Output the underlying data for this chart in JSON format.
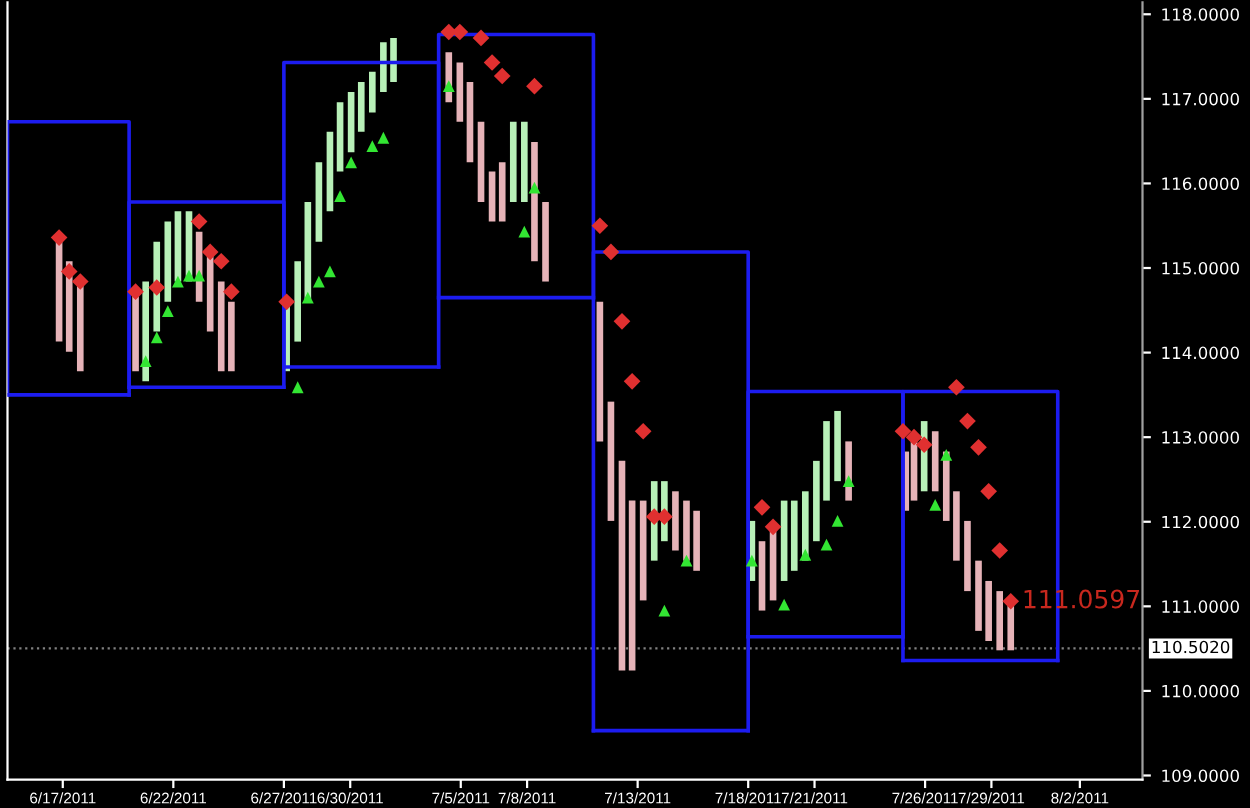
{
  "chart_data": {
    "type": "bar",
    "xlim": [
      "2011-06-14T12:00",
      "2011-08-04T20:00"
    ],
    "ylim": [
      108.95,
      118.14
    ],
    "xticks": [
      {
        "value": "2011-06-17",
        "label": "6/17/2011"
      },
      {
        "value": "2011-06-22",
        "label": "6/22/2011"
      },
      {
        "value": "2011-06-27",
        "label": "6/27/2011"
      },
      {
        "value": "2011-06-30",
        "label": "6/30/2011"
      },
      {
        "value": "2011-07-05",
        "label": "7/5/2011"
      },
      {
        "value": "2011-07-08",
        "label": "7/8/2011"
      },
      {
        "value": "2011-07-13",
        "label": "7/13/2011"
      },
      {
        "value": "2011-07-18",
        "label": "7/18/2011"
      },
      {
        "value": "2011-07-21",
        "label": "7/21/2011"
      },
      {
        "value": "2011-07-26",
        "label": "7/26/2011"
      },
      {
        "value": "2011-07-29",
        "label": "7/29/2011"
      },
      {
        "value": "2011-08-02",
        "label": "8/2/2011"
      }
    ],
    "yticks": [
      {
        "value": 109,
        "label": "109.0000"
      },
      {
        "value": 110,
        "label": "110.0000"
      },
      {
        "value": 111,
        "label": "111.0000"
      },
      {
        "value": 112,
        "label": "112.0000"
      },
      {
        "value": 113,
        "label": "113.0000"
      },
      {
        "value": 114,
        "label": "114.0000"
      },
      {
        "value": 115,
        "label": "115.0000"
      },
      {
        "value": 116,
        "label": "116.0000"
      },
      {
        "value": 117,
        "label": "117.0000"
      },
      {
        "value": 118,
        "label": "118.0000"
      }
    ],
    "grid": false,
    "legend": false,
    "annotations": [
      {
        "text": "111.0597",
        "x": "2011-07-29T21:00",
        "y": 111.0597
      }
    ],
    "ref_lines": [
      {
        "axis": "y",
        "value": 110.502,
        "label": "110.5020",
        "color": "#808080",
        "line_style": "dotted"
      }
    ],
    "series": [
      {
        "x": [
          "2011-06-16T20:00",
          "2011-06-17T07:00",
          "2011-06-17T19:00",
          "2011-06-20T07:00",
          "2011-06-20T18:00",
          "2011-06-21T06:00",
          "2011-06-21T18:00",
          "2011-06-22T05:00",
          "2011-06-22T17:00",
          "2011-06-23T04:00",
          "2011-06-23T16:00",
          "2011-06-24T04:00",
          "2011-06-24T15:00",
          "2011-06-27T03:00",
          "2011-06-27T15:00",
          "2011-06-28T02:00",
          "2011-06-28T14:00",
          "2011-06-29T02:00",
          "2011-06-29T13:00",
          "2011-06-30T01:00",
          "2011-06-30T12:00",
          "2011-07-01T00:00",
          "2011-07-01T12:00",
          "2011-07-01T23:00",
          "2011-07-04T11:00",
          "2011-07-04T23:00",
          "2011-07-05T10:00",
          "2011-07-05T22:00",
          "2011-07-06T10:00",
          "2011-07-06T21:00",
          "2011-07-07T09:00",
          "2011-07-07T21:00",
          "2011-07-08T08:00",
          "2011-07-08T20:00",
          "2011-07-11T07:00",
          "2011-07-11T19:00",
          "2011-07-12T07:00",
          "2011-07-12T18:00",
          "2011-07-13T06:00",
          "2011-07-13T18:00",
          "2011-07-14T05:00",
          "2011-07-14T17:00",
          "2011-07-15T05:00",
          "2011-07-15T16:00",
          "2011-07-18T04:00",
          "2011-07-18T15:00",
          "2011-07-19T03:00",
          "2011-07-19T15:00",
          "2011-07-20T02:00",
          "2011-07-20T14:00",
          "2011-07-21T02:00",
          "2011-07-21T13:00",
          "2011-07-22T01:00",
          "2011-07-22T13:00",
          "2011-07-25T03:00",
          "2011-07-25T12:00",
          "2011-07-25T23:00",
          "2011-07-26T11:00",
          "2011-07-26T23:00",
          "2011-07-27T10:00",
          "2011-07-27T22:00",
          "2011-07-28T10:00",
          "2011-07-28T21:00",
          "2011-07-29T09:00",
          "2011-07-29T21:00"
        ],
        "base": [
          114.13,
          114.01,
          113.78,
          113.78,
          113.66,
          114.25,
          114.6,
          114.84,
          114.84,
          114.6,
          114.25,
          113.78,
          113.78,
          113.78,
          114.13,
          114.6,
          115.31,
          115.67,
          116.14,
          116.37,
          116.61,
          116.84,
          117.08,
          117.2,
          116.96,
          116.73,
          116.25,
          115.78,
          115.55,
          115.55,
          115.78,
          115.78,
          115.08,
          114.84,
          112.95,
          112.01,
          110.24,
          110.24,
          111.07,
          111.54,
          111.77,
          111.66,
          111.54,
          111.42,
          111.3,
          110.95,
          111.07,
          111.3,
          111.42,
          111.54,
          111.77,
          112.25,
          112.48,
          112.25,
          112.13,
          112.25,
          112.36,
          112.36,
          112.01,
          111.54,
          111.18,
          110.71,
          110.59,
          110.48,
          110.48
        ],
        "values": [
          1.18,
          1.07,
          1.06,
          0.94,
          1.18,
          1.06,
          0.95,
          0.83,
          0.83,
          0.83,
          0.94,
          1.06,
          0.82,
          0.82,
          0.95,
          1.18,
          0.94,
          0.94,
          0.82,
          0.71,
          0.59,
          0.48,
          0.59,
          0.52,
          0.59,
          0.7,
          0.95,
          0.95,
          0.59,
          0.7,
          0.95,
          0.95,
          1.41,
          0.94,
          1.65,
          1.41,
          2.48,
          2.01,
          1.18,
          0.94,
          0.71,
          0.7,
          0.71,
          0.71,
          0.71,
          0.82,
          0.82,
          0.95,
          0.83,
          0.82,
          0.95,
          0.94,
          0.83,
          0.7,
          0.7,
          0.7,
          0.83,
          0.71,
          0.82,
          0.82,
          0.83,
          0.83,
          0.71,
          0.7,
          0.59
        ],
        "colors": [
          "#e6b3b8",
          "#e6b3b8",
          "#e6b3b8",
          "#e6b3b8",
          "#b8f0b8",
          "#b8f0b8",
          "#b8f0b8",
          "#b8f0b8",
          "#b8f0b8",
          "#e6b3b8",
          "#e6b3b8",
          "#e6b3b8",
          "#e6b3b8",
          "#b8f0b8",
          "#b8f0b8",
          "#b8f0b8",
          "#b8f0b8",
          "#b8f0b8",
          "#b8f0b8",
          "#b8f0b8",
          "#b8f0b8",
          "#b8f0b8",
          "#b8f0b8",
          "#b8f0b8",
          "#e6b3b8",
          "#e6b3b8",
          "#e6b3b8",
          "#e6b3b8",
          "#e6b3b8",
          "#e6b3b8",
          "#b8f0b8",
          "#b8f0b8",
          "#e6b3b8",
          "#e6b3b8",
          "#e6b3b8",
          "#e6b3b8",
          "#e6b3b8",
          "#e6b3b8",
          "#e6b3b8",
          "#b8f0b8",
          "#b8f0b8",
          "#e6b3b8",
          "#e6b3b8",
          "#e6b3b8",
          "#b8f0b8",
          "#e6b3b8",
          "#e6b3b8",
          "#b8f0b8",
          "#b8f0b8",
          "#b8f0b8",
          "#b8f0b8",
          "#b8f0b8",
          "#b8f0b8",
          "#e6b3b8",
          "#e6b3b8",
          "#e6b3b8",
          "#b8f0b8",
          "#e6b3b8",
          "#e6b3b8",
          "#e6b3b8",
          "#e6b3b8",
          "#e6b3b8",
          "#e6b3b8",
          "#e6b3b8",
          "#e6b3b8"
        ]
      },
      {
        "type": "line",
        "color": "#1c1cf0",
        "x": [
          "2011-06-14T12:00",
          "2011-06-14T12:00",
          "2011-06-20T00:00",
          "2011-06-20T00:00"
        ],
        "values": [
          113.5,
          116.73,
          116.73,
          113.5
        ]
      },
      {
        "type": "line",
        "color": "#1c1cf0",
        "x": [
          "2011-06-14T12:00",
          "2011-06-20T00:00"
        ],
        "values": [
          113.5,
          113.5
        ]
      },
      {
        "type": "line",
        "color": "#1c1cf0",
        "x": [
          "2011-06-20T00:00",
          "2011-06-20T00:00",
          "2011-06-27T00:00",
          "2011-06-27T00:00"
        ],
        "values": [
          113.59,
          115.78,
          115.78,
          113.59
        ]
      },
      {
        "type": "line",
        "color": "#1c1cf0",
        "x": [
          "2011-06-20T00:00",
          "2011-06-27T00:00"
        ],
        "values": [
          113.59,
          113.59
        ]
      },
      {
        "type": "line",
        "color": "#1c1cf0",
        "x": [
          "2011-06-27T00:00",
          "2011-06-27T00:00",
          "2011-07-04T00:00",
          "2011-07-04T00:00"
        ],
        "values": [
          113.83,
          117.43,
          117.43,
          113.83
        ]
      },
      {
        "type": "line",
        "color": "#1c1cf0",
        "x": [
          "2011-06-27T00:00",
          "2011-07-04T00:00"
        ],
        "values": [
          113.83,
          113.83
        ]
      },
      {
        "type": "line",
        "color": "#1c1cf0",
        "x": [
          "2011-07-04T00:00",
          "2011-07-04T00:00",
          "2011-07-11T00:00",
          "2011-07-11T00:00"
        ],
        "values": [
          114.65,
          117.76,
          117.76,
          114.65
        ]
      },
      {
        "type": "line",
        "color": "#1c1cf0",
        "x": [
          "2011-07-04T00:00",
          "2011-07-11T00:00"
        ],
        "values": [
          114.65,
          114.65
        ]
      },
      {
        "type": "line",
        "color": "#1c1cf0",
        "x": [
          "2011-07-11T00:00",
          "2011-07-11T00:00",
          "2011-07-18T00:00",
          "2011-07-18T00:00"
        ],
        "values": [
          109.53,
          115.19,
          115.19,
          109.53
        ]
      },
      {
        "type": "line",
        "color": "#1c1cf0",
        "x": [
          "2011-07-11T00:00",
          "2011-07-18T00:00"
        ],
        "values": [
          109.53,
          109.53
        ]
      },
      {
        "type": "line",
        "color": "#1c1cf0",
        "x": [
          "2011-07-18T00:00",
          "2011-07-18T00:00",
          "2011-07-25T00:00",
          "2011-07-25T00:00"
        ],
        "values": [
          110.64,
          113.54,
          113.54,
          110.64
        ]
      },
      {
        "type": "line",
        "color": "#1c1cf0",
        "x": [
          "2011-07-18T00:00",
          "2011-07-25T00:00"
        ],
        "values": [
          110.64,
          110.64
        ]
      },
      {
        "type": "line",
        "color": "#1c1cf0",
        "x": [
          "2011-07-25T00:00",
          "2011-07-25T00:00",
          "2011-08-01T00:00",
          "2011-08-01T00:00"
        ],
        "values": [
          110.36,
          113.54,
          113.54,
          110.36
        ]
      },
      {
        "type": "line",
        "color": "#1c1cf0",
        "x": [
          "2011-07-25T00:00",
          "2011-08-01T00:00"
        ],
        "values": [
          110.36,
          110.36
        ]
      },
      {
        "type": "scatter",
        "color": "#33e633",
        "marker": "triangle",
        "x": [
          "2011-06-20T18:00",
          "2011-06-21T06:00",
          "2011-06-21T18:00",
          "2011-06-22T05:00",
          "2011-06-22T17:00",
          "2011-06-23T04:00",
          "2011-06-27T15:00",
          "2011-06-28T02:00",
          "2011-06-28T14:00",
          "2011-06-29T02:00",
          "2011-06-29T13:00",
          "2011-06-30T01:00",
          "2011-07-01T00:00",
          "2011-07-01T12:00",
          "2011-07-04T11:00",
          "2011-07-07T21:00",
          "2011-07-08T08:00",
          "2011-07-14T05:00",
          "2011-07-15T05:00",
          "2011-07-18T04:00",
          "2011-07-19T15:00",
          "2011-07-20T14:00",
          "2011-07-21T13:00",
          "2011-07-22T01:00",
          "2011-07-22T13:00",
          "2011-07-26T11:00",
          "2011-07-26T23:00"
        ],
        "values": [
          113.9,
          114.18,
          114.49,
          114.84,
          114.91,
          114.91,
          113.59,
          114.65,
          114.84,
          114.96,
          115.85,
          116.25,
          116.44,
          116.54,
          117.15,
          115.43,
          115.95,
          110.95,
          111.54,
          111.54,
          111.02,
          111.61,
          111.73,
          112.01,
          112.48,
          112.2,
          112.79
        ]
      },
      {
        "type": "scatter",
        "color": "#e03030",
        "marker": "diamond",
        "x": [
          "2011-06-16T20:00",
          "2011-06-17T07:00",
          "2011-06-17T19:00",
          "2011-06-20T07:00",
          "2011-06-21T06:00",
          "2011-06-23T04:00",
          "2011-06-23T16:00",
          "2011-06-24T04:00",
          "2011-06-24T15:00",
          "2011-06-27T03:00",
          "2011-07-04T11:00",
          "2011-07-04T23:00",
          "2011-07-05T22:00",
          "2011-07-06T10:00",
          "2011-07-06T21:00",
          "2011-07-08T08:00",
          "2011-07-11T07:00",
          "2011-07-11T19:00",
          "2011-07-12T07:00",
          "2011-07-12T18:00",
          "2011-07-13T06:00",
          "2011-07-13T18:00",
          "2011-07-14T05:00",
          "2011-07-18T15:00",
          "2011-07-19T03:00",
          "2011-07-25T00:00",
          "2011-07-25T12:00",
          "2011-07-25T23:00",
          "2011-07-27T10:00",
          "2011-07-27T22:00",
          "2011-07-28T10:00",
          "2011-07-28T21:00",
          "2011-07-29T09:00",
          "2011-07-29T21:00"
        ],
        "values": [
          115.36,
          114.96,
          114.84,
          114.72,
          114.77,
          115.55,
          115.19,
          115.08,
          114.72,
          114.6,
          117.79,
          117.79,
          117.72,
          117.43,
          117.27,
          117.15,
          115.5,
          115.19,
          114.37,
          113.66,
          113.07,
          112.06,
          112.06,
          112.17,
          111.94,
          113.07,
          113.0,
          112.91,
          113.59,
          113.19,
          112.88,
          112.36,
          111.66,
          111.0597
        ]
      }
    ]
  }
}
